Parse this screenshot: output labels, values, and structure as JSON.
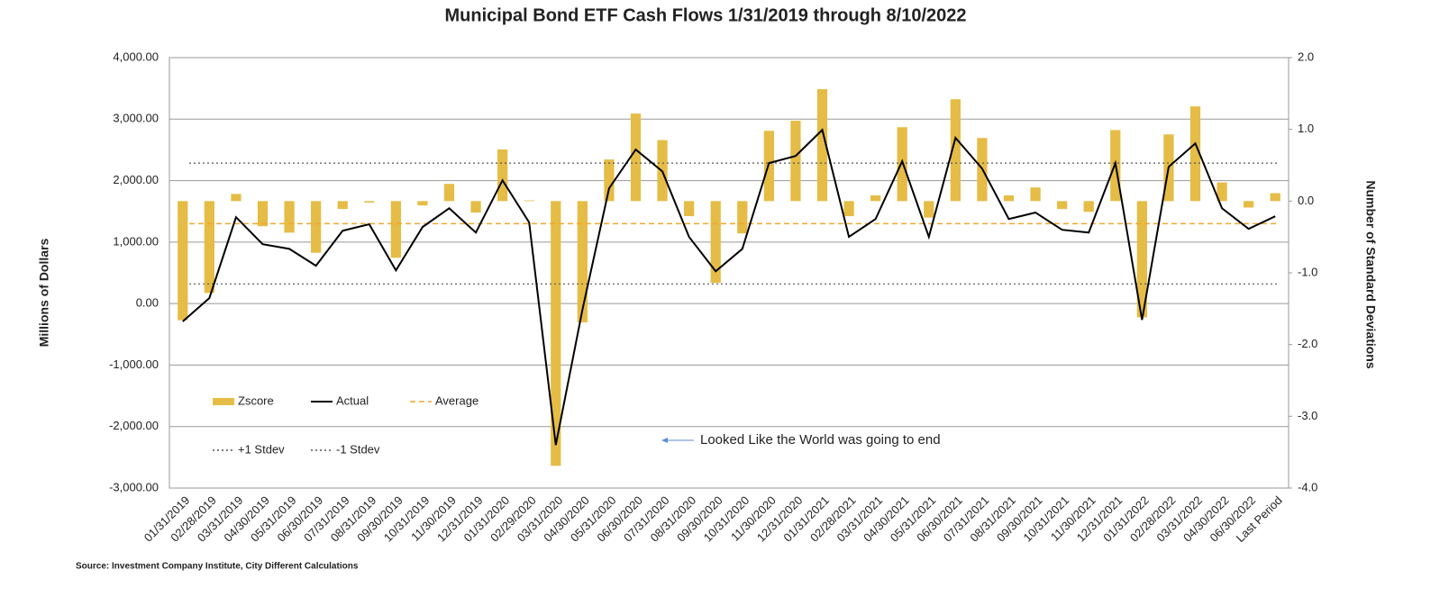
{
  "chart_data": {
    "type": "bar-line",
    "title": "Municipal Bond ETF Cash Flows 1/31/2019 through 8/10/2022",
    "ylabel": "Millions of Dollars",
    "y2label": "Number of Standard Deviations",
    "source": "Source: Investment Company Institute, City Different Calculations",
    "annotation": "Looked Like the World was going to end",
    "categories": [
      "01/31/2019",
      "02/28/2019",
      "03/31/2019",
      "04/30/2019",
      "05/31/2019",
      "06/30/2019",
      "07/31/2019",
      "08/31/2019",
      "09/30/2019",
      "10/31/2019",
      "11/30/2019",
      "12/31/2019",
      "01/31/2020",
      "02/29/2020",
      "03/31/2020",
      "04/30/2020",
      "05/31/2020",
      "06/30/2020",
      "07/31/2020",
      "08/31/2020",
      "09/30/2020",
      "10/31/2020",
      "11/30/2020",
      "12/31/2020",
      "01/31/2021",
      "02/28/2021",
      "03/31/2021",
      "04/30/2021",
      "05/31/2021",
      "06/30/2021",
      "07/31/2021",
      "08/31/2021",
      "09/30/2021",
      "10/31/2021",
      "11/30/2021",
      "12/31/2021",
      "01/31/2022",
      "02/28/2022",
      "03/31/2022",
      "04/30/2022",
      "06/30/2022",
      "Last Period"
    ],
    "series": [
      {
        "name": "Zscore",
        "type": "bar",
        "axis": "y2",
        "color": "#e5bc45",
        "values": [
          -1.66,
          -1.28,
          0.1,
          -0.35,
          -0.44,
          -0.72,
          -0.11,
          -0.02,
          -0.79,
          -0.06,
          0.24,
          -0.16,
          0.72,
          0.01,
          -3.69,
          -1.69,
          0.58,
          1.22,
          0.85,
          -0.21,
          -1.14,
          -0.45,
          0.98,
          1.12,
          1.56,
          -0.21,
          0.08,
          1.03,
          -0.23,
          1.42,
          0.88,
          0.08,
          0.19,
          -0.11,
          -0.15,
          0.99,
          -1.62,
          0.93,
          1.32,
          0.26,
          -0.09,
          0.11
        ]
      },
      {
        "name": "Actual",
        "type": "line",
        "color": "#000000",
        "values": [
          -290,
          90,
          1405,
          965,
          890,
          615,
          1185,
          1290,
          540,
          1245,
          1550,
          1155,
          2005,
          1320,
          -2300,
          -100,
          1875,
          2505,
          2150,
          1085,
          525,
          890,
          2285,
          2400,
          2825,
          1085,
          1375,
          2315,
          1085,
          2695,
          2195,
          1375,
          1480,
          1200,
          1155,
          2285,
          -265,
          2225,
          2605,
          1550,
          1215,
          1420
        ]
      }
    ],
    "reference_lines": [
      {
        "name": "Average",
        "value": 1300,
        "color": "#f0a830",
        "style": "dashed"
      },
      {
        "name": "+1 Stdev",
        "value": 2285,
        "color": "#555555",
        "style": "dotted"
      },
      {
        "name": "-1 Stdev",
        "value": 320,
        "color": "#555555",
        "style": "dotted"
      }
    ],
    "ylim": [
      -3000,
      4000
    ],
    "yticks": [
      {
        "value": -3000,
        "label": "-3,000.00"
      },
      {
        "value": -2000,
        "label": "-2,000.00"
      },
      {
        "value": -1000,
        "label": "-1,000.00"
      },
      {
        "value": 0,
        "label": "0.00"
      },
      {
        "value": 1000,
        "label": "1,000.00"
      },
      {
        "value": 2000,
        "label": "2,000.00"
      },
      {
        "value": 3000,
        "label": "3,000.00"
      },
      {
        "value": 4000,
        "label": "4,000.00"
      }
    ],
    "y2lim": [
      -4,
      2
    ],
    "y2ticks": [
      {
        "value": -4,
        "label": "-4.0"
      },
      {
        "value": -3,
        "label": "-3.0"
      },
      {
        "value": -2,
        "label": "-2.0"
      },
      {
        "value": -1,
        "label": "-1.0"
      },
      {
        "value": 0,
        "label": "0.0"
      },
      {
        "value": 1,
        "label": "1.0"
      },
      {
        "value": 2,
        "label": "2.0"
      }
    ],
    "grid": true
  }
}
